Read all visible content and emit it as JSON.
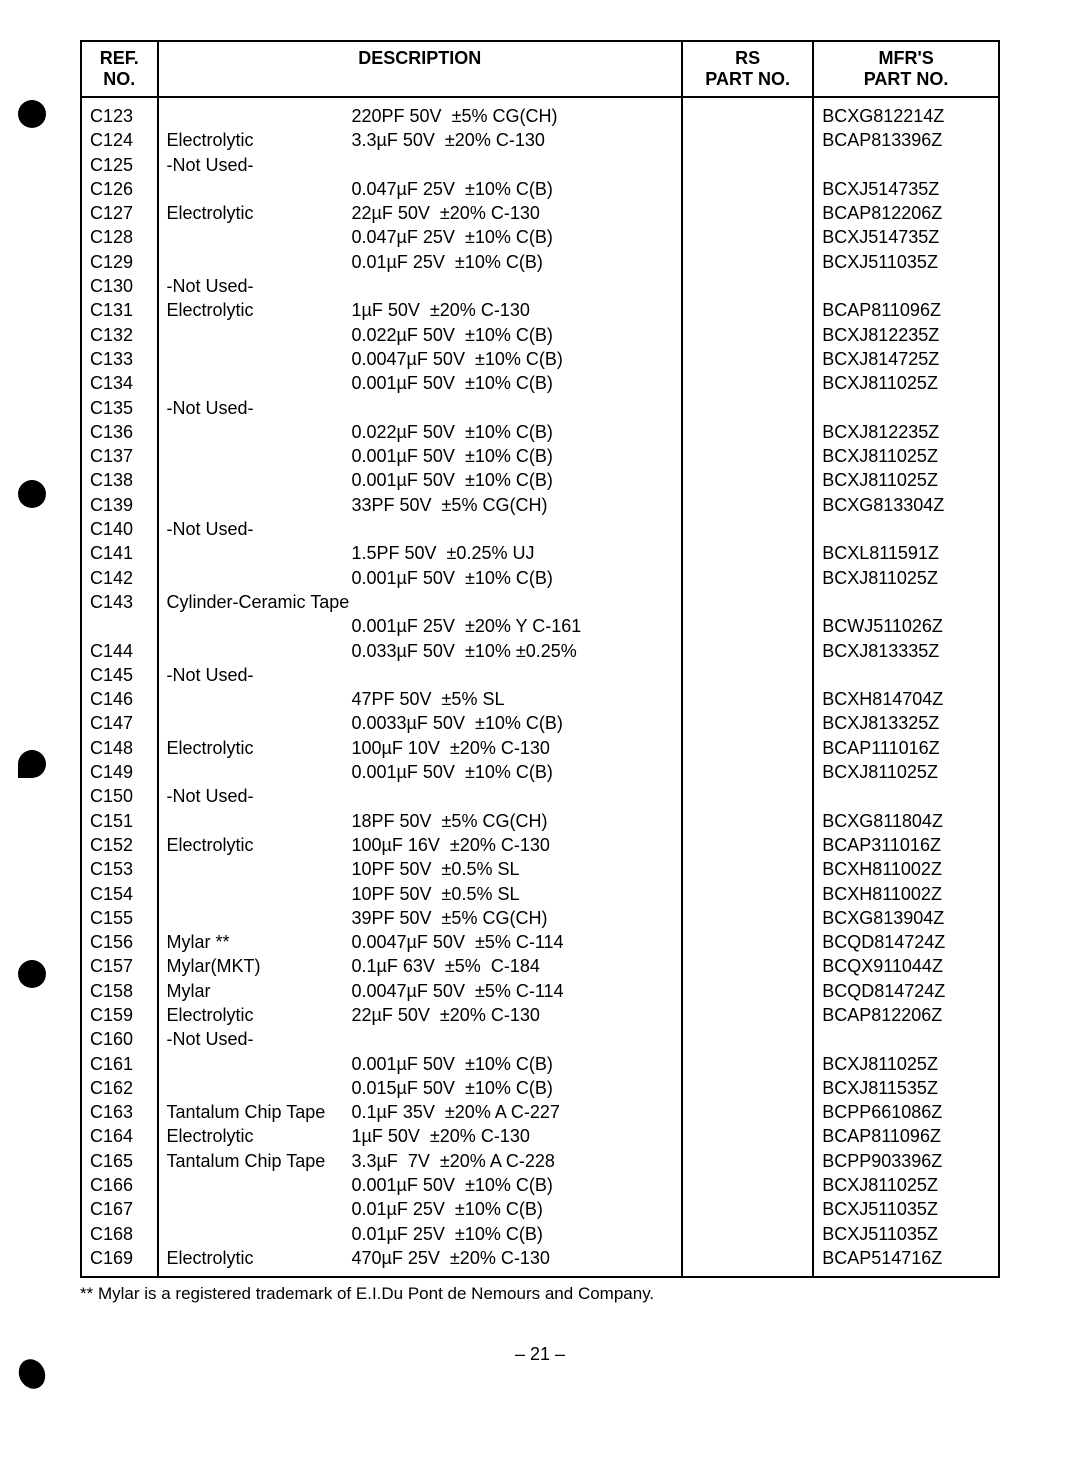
{
  "headers": {
    "ref": "REF.\nNO.",
    "desc": "DESCRIPTION",
    "rs": "RS\nPART NO.",
    "mfr": "MFR'S\nPART NO."
  },
  "rows": [
    {
      "ref": "C123",
      "type": "",
      "val": "220PF 50V  ±5% CG(CH)",
      "mfr": "BCXG812214Z"
    },
    {
      "ref": "C124",
      "type": "Electrolytic",
      "val": "3.3µF 50V  ±20% C-130",
      "mfr": "BCAP813396Z"
    },
    {
      "ref": "C125",
      "type": "-Not Used-",
      "val": "",
      "mfr": ""
    },
    {
      "ref": "C126",
      "type": "",
      "val": "0.047µF 25V  ±10% C(B)",
      "mfr": "BCXJ514735Z"
    },
    {
      "ref": "C127",
      "type": "Electrolytic",
      "val": "22µF 50V  ±20% C-130",
      "mfr": "BCAP812206Z"
    },
    {
      "ref": "C128",
      "type": "",
      "val": "0.047µF 25V  ±10% C(B)",
      "mfr": "BCXJ514735Z"
    },
    {
      "ref": "C129",
      "type": "",
      "val": "0.01µF 25V  ±10% C(B)",
      "mfr": "BCXJ511035Z"
    },
    {
      "ref": "C130",
      "type": "-Not Used-",
      "val": "",
      "mfr": ""
    },
    {
      "ref": "C131",
      "type": "Electrolytic",
      "val": "1µF 50V  ±20% C-130",
      "mfr": "BCAP811096Z"
    },
    {
      "ref": "C132",
      "type": "",
      "val": "0.022µF 50V  ±10% C(B)",
      "mfr": "BCXJ812235Z"
    },
    {
      "ref": "C133",
      "type": "",
      "val": "0.0047µF 50V  ±10% C(B)",
      "mfr": "BCXJ814725Z"
    },
    {
      "ref": "C134",
      "type": "",
      "val": "0.001µF 50V  ±10% C(B)",
      "mfr": "BCXJ811025Z"
    },
    {
      "ref": "C135",
      "type": "-Not Used-",
      "val": "",
      "mfr": ""
    },
    {
      "ref": "C136",
      "type": "",
      "val": "0.022µF 50V  ±10% C(B)",
      "mfr": "BCXJ812235Z"
    },
    {
      "ref": "C137",
      "type": "",
      "val": "0.001µF 50V  ±10% C(B)",
      "mfr": "BCXJ811025Z"
    },
    {
      "ref": "C138",
      "type": "",
      "val": "0.001µF 50V  ±10% C(B)",
      "mfr": "BCXJ811025Z"
    },
    {
      "ref": "C139",
      "type": "",
      "val": "33PF 50V  ±5% CG(CH)",
      "mfr": "BCXG813304Z"
    },
    {
      "ref": "C140",
      "type": "-Not Used-",
      "val": "",
      "mfr": ""
    },
    {
      "ref": "C141",
      "type": "",
      "val": "1.5PF 50V  ±0.25% UJ",
      "mfr": "BCXL811591Z"
    },
    {
      "ref": "C142",
      "type": "",
      "val": "0.001µF 50V  ±10% C(B)",
      "mfr": "BCXJ811025Z"
    },
    {
      "ref": "C143",
      "type": "Cylinder-Ceramic Tape",
      "val": "",
      "mfr": ""
    },
    {
      "ref": "",
      "type": "",
      "val": "0.001µF 25V  ±20% Y C-161",
      "mfr": "BCWJ511026Z"
    },
    {
      "ref": "C144",
      "type": "",
      "val": "0.033µF 50V  ±10% ±0.25%",
      "mfr": "BCXJ813335Z"
    },
    {
      "ref": "C145",
      "type": "-Not Used-",
      "val": "",
      "mfr": ""
    },
    {
      "ref": "C146",
      "type": "",
      "val": "47PF 50V  ±5% SL",
      "mfr": "BCXH814704Z"
    },
    {
      "ref": "C147",
      "type": "",
      "val": "0.0033µF 50V  ±10% C(B)",
      "mfr": "BCXJ813325Z"
    },
    {
      "ref": "C148",
      "type": "Electrolytic",
      "val": "100µF 10V  ±20% C-130",
      "mfr": "BCAP111016Z"
    },
    {
      "ref": "C149",
      "type": "",
      "val": "0.001µF 50V  ±10% C(B)",
      "mfr": "BCXJ811025Z"
    },
    {
      "ref": "C150",
      "type": "-Not Used-",
      "val": "",
      "mfr": ""
    },
    {
      "ref": "C151",
      "type": "",
      "val": "18PF 50V  ±5% CG(CH)",
      "mfr": "BCXG811804Z"
    },
    {
      "ref": "C152",
      "type": "Electrolytic",
      "val": "100µF 16V  ±20% C-130",
      "mfr": "BCAP311016Z"
    },
    {
      "ref": "C153",
      "type": "",
      "val": "10PF 50V  ±0.5% SL",
      "mfr": "BCXH811002Z"
    },
    {
      "ref": "C154",
      "type": "",
      "val": "10PF 50V  ±0.5% SL",
      "mfr": "BCXH811002Z"
    },
    {
      "ref": "C155",
      "type": "",
      "val": "39PF 50V  ±5% CG(CH)",
      "mfr": "BCXG813904Z"
    },
    {
      "ref": "C156",
      "type": "Mylar **",
      "val": "0.0047µF 50V  ±5% C-114",
      "mfr": "BCQD814724Z"
    },
    {
      "ref": "C157",
      "type": "Mylar(MKT)",
      "val": "0.1µF 63V  ±5%  C-184",
      "mfr": "BCQX911044Z"
    },
    {
      "ref": "C158",
      "type": "Mylar",
      "val": "0.0047µF 50V  ±5% C-114",
      "mfr": "BCQD814724Z"
    },
    {
      "ref": "C159",
      "type": "Electrolytic",
      "val": "22µF 50V  ±20% C-130",
      "mfr": "BCAP812206Z"
    },
    {
      "ref": "C160",
      "type": "-Not Used-",
      "val": "",
      "mfr": ""
    },
    {
      "ref": "C161",
      "type": "",
      "val": "0.001µF 50V  ±10% C(B)",
      "mfr": "BCXJ811025Z"
    },
    {
      "ref": "C162",
      "type": "",
      "val": "0.015µF 50V  ±10% C(B)",
      "mfr": "BCXJ811535Z"
    },
    {
      "ref": "C163",
      "type": "Tantalum Chip Tape",
      "val": "0.1µF 35V  ±20% A C-227",
      "mfr": "BCPP661086Z"
    },
    {
      "ref": "C164",
      "type": "Electrolytic",
      "val": "1µF 50V  ±20% C-130",
      "mfr": "BCAP811096Z"
    },
    {
      "ref": "C165",
      "type": "Tantalum Chip Tape",
      "val": "3.3µF  7V  ±20% A C-228",
      "mfr": "BCPP903396Z"
    },
    {
      "ref": "C166",
      "type": "",
      "val": "0.001µF 50V  ±10% C(B)",
      "mfr": "BCXJ811025Z"
    },
    {
      "ref": "C167",
      "type": "",
      "val": "0.01µF 25V  ±10% C(B)",
      "mfr": "BCXJ511035Z"
    },
    {
      "ref": "C168",
      "type": "",
      "val": "0.01µF 25V  ±10% C(B)",
      "mfr": "BCXJ511035Z"
    },
    {
      "ref": "C169",
      "type": "Electrolytic",
      "val": "470µF 25V  ±20% C-130",
      "mfr": "BCAP514716Z"
    }
  ],
  "footnote": "** Mylar is a registered trademark of E.I.Du Pont de Nemours and Company.",
  "page": "– 21 –"
}
